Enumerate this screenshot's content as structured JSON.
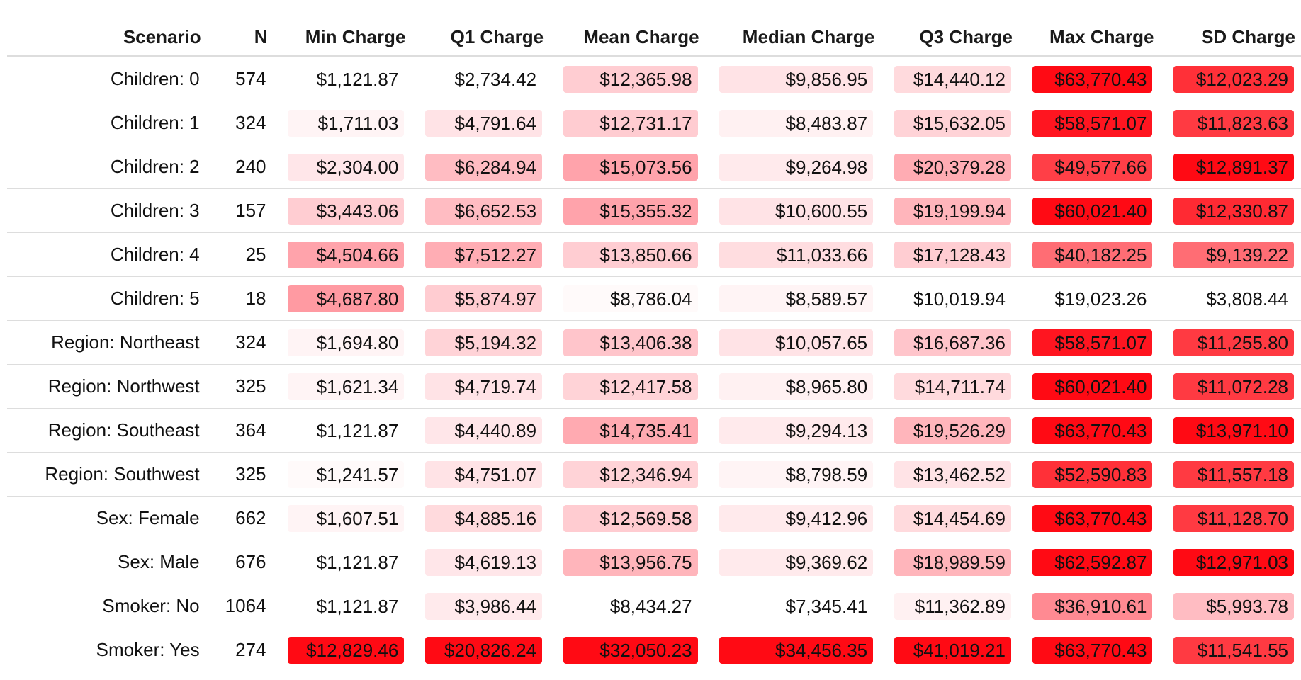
{
  "chart_data": {
    "type": "table",
    "columns": [
      "Scenario",
      "N",
      "Min Charge",
      "Q1 Charge",
      "Mean Charge",
      "Median Charge",
      "Q3 Charge",
      "Max Charge",
      "SD Charge"
    ],
    "rows": [
      {
        "scenario": "Children: 0",
        "n": "574",
        "cells": [
          {
            "text": "$1,121.87",
            "color": "#ffffff"
          },
          {
            "text": "$2,734.42",
            "color": "#ffffff"
          },
          {
            "text": "$12,365.98",
            "color": "#ffcdd2"
          },
          {
            "text": "$9,856.95",
            "color": "#ffe3e6"
          },
          {
            "text": "$14,440.12",
            "color": "#ffdadd"
          },
          {
            "text": "$63,770.43",
            "color": "#ff0a14"
          },
          {
            "text": "$12,023.29",
            "color": "#ff3038"
          }
        ]
      },
      {
        "scenario": "Children: 1",
        "n": "324",
        "cells": [
          {
            "text": "$1,711.03",
            "color": "#fff4f5"
          },
          {
            "text": "$4,791.64",
            "color": "#ffe3e6"
          },
          {
            "text": "$12,731.17",
            "color": "#ffccd1"
          },
          {
            "text": "$8,483.87",
            "color": "#fff1f2"
          },
          {
            "text": "$15,632.05",
            "color": "#ffd3d7"
          },
          {
            "text": "$58,571.07",
            "color": "#ff1520"
          },
          {
            "text": "$11,823.63",
            "color": "#ff3a42"
          }
        ]
      },
      {
        "scenario": "Children: 2",
        "n": "240",
        "cells": [
          {
            "text": "$2,304.00",
            "color": "#ffe6e9"
          },
          {
            "text": "$6,284.94",
            "color": "#ffbcc2"
          },
          {
            "text": "$15,073.56",
            "color": "#ffa3ab"
          },
          {
            "text": "$9,264.98",
            "color": "#ffeaec"
          },
          {
            "text": "$20,379.28",
            "color": "#ffacb3"
          },
          {
            "text": "$49,577.66",
            "color": "#ff3f47"
          },
          {
            "text": "$12,891.37",
            "color": "#ff0a14"
          }
        ]
      },
      {
        "scenario": "Children: 3",
        "n": "157",
        "cells": [
          {
            "text": "$3,443.06",
            "color": "#ffcdd2"
          },
          {
            "text": "$6,652.53",
            "color": "#ffbcc2"
          },
          {
            "text": "$15,355.32",
            "color": "#ffa3ab"
          },
          {
            "text": "$10,600.55",
            "color": "#ffe3e6"
          },
          {
            "text": "$19,199.94",
            "color": "#ffb5bb"
          },
          {
            "text": "$60,021.40",
            "color": "#ff0a14"
          },
          {
            "text": "$12,330.87",
            "color": "#ff2a33"
          }
        ]
      },
      {
        "scenario": "Children: 4",
        "n": "25",
        "cells": [
          {
            "text": "$4,504.66",
            "color": "#ffa3ab"
          },
          {
            "text": "$7,512.27",
            "color": "#ffadb4"
          },
          {
            "text": "$13,850.66",
            "color": "#ffcdd2"
          },
          {
            "text": "$11,033.66",
            "color": "#ffdde0"
          },
          {
            "text": "$17,128.43",
            "color": "#ffcdd2"
          },
          {
            "text": "$40,182.25",
            "color": "#ff6d74"
          },
          {
            "text": "$9,139.22",
            "color": "#ff6d74"
          }
        ]
      },
      {
        "scenario": "Children: 5",
        "n": "18",
        "cells": [
          {
            "text": "$4,687.80",
            "color": "#ff9aa2"
          },
          {
            "text": "$5,874.97",
            "color": "#ffccd1"
          },
          {
            "text": "$8,786.04",
            "color": "#fffafa"
          },
          {
            "text": "$8,589.57",
            "color": "#fff4f5"
          },
          {
            "text": "$10,019.94",
            "color": "#ffffff"
          },
          {
            "text": "$19,023.26",
            "color": "#ffffff"
          },
          {
            "text": "$3,808.44",
            "color": "#ffffff"
          }
        ]
      },
      {
        "scenario": "Region: Northeast",
        "n": "324",
        "cells": [
          {
            "text": "$1,694.80",
            "color": "#fff4f5"
          },
          {
            "text": "$5,194.32",
            "color": "#ffd3d7"
          },
          {
            "text": "$13,406.38",
            "color": "#ffc5cb"
          },
          {
            "text": "$10,057.65",
            "color": "#ffe3e6"
          },
          {
            "text": "$16,687.36",
            "color": "#ffc5cb"
          },
          {
            "text": "$58,571.07",
            "color": "#ff1520"
          },
          {
            "text": "$11,255.80",
            "color": "#ff3a42"
          }
        ]
      },
      {
        "scenario": "Region: Northwest",
        "n": "325",
        "cells": [
          {
            "text": "$1,621.34",
            "color": "#fff4f5"
          },
          {
            "text": "$4,719.74",
            "color": "#ffe3e6"
          },
          {
            "text": "$12,417.58",
            "color": "#ffd3d7"
          },
          {
            "text": "$8,965.80",
            "color": "#fff1f2"
          },
          {
            "text": "$14,711.74",
            "color": "#ffdadd"
          },
          {
            "text": "$60,021.40",
            "color": "#ff0a14"
          },
          {
            "text": "$11,072.28",
            "color": "#ff3a42"
          }
        ]
      },
      {
        "scenario": "Region: Southeast",
        "n": "364",
        "cells": [
          {
            "text": "$1,121.87",
            "color": "#ffffff"
          },
          {
            "text": "$4,440.89",
            "color": "#ffe6e9"
          },
          {
            "text": "$14,735.41",
            "color": "#ffaab1"
          },
          {
            "text": "$9,294.13",
            "color": "#ffeaec"
          },
          {
            "text": "$19,526.29",
            "color": "#ffb5bb"
          },
          {
            "text": "$63,770.43",
            "color": "#ff0a14"
          },
          {
            "text": "$13,971.10",
            "color": "#ff0a14"
          }
        ]
      },
      {
        "scenario": "Region: Southwest",
        "n": "325",
        "cells": [
          {
            "text": "$1,241.57",
            "color": "#fffafa"
          },
          {
            "text": "$4,751.07",
            "color": "#ffe3e6"
          },
          {
            "text": "$12,346.94",
            "color": "#ffd3d7"
          },
          {
            "text": "$8,798.59",
            "color": "#fff4f5"
          },
          {
            "text": "$13,462.52",
            "color": "#ffe3e6"
          },
          {
            "text": "$52,590.83",
            "color": "#ff3038"
          },
          {
            "text": "$11,557.18",
            "color": "#ff3a42"
          }
        ]
      },
      {
        "scenario": "Sex: Female",
        "n": "662",
        "cells": [
          {
            "text": "$1,607.51",
            "color": "#fff4f5"
          },
          {
            "text": "$4,885.16",
            "color": "#ffdadd"
          },
          {
            "text": "$12,569.58",
            "color": "#ffccd1"
          },
          {
            "text": "$9,412.96",
            "color": "#ffeaec"
          },
          {
            "text": "$14,454.69",
            "color": "#ffdadd"
          },
          {
            "text": "$63,770.43",
            "color": "#ff0a14"
          },
          {
            "text": "$11,128.70",
            "color": "#ff3a42"
          }
        ]
      },
      {
        "scenario": "Sex: Male",
        "n": "676",
        "cells": [
          {
            "text": "$1,121.87",
            "color": "#ffffff"
          },
          {
            "text": "$4,619.13",
            "color": "#ffe6e9"
          },
          {
            "text": "$13,956.75",
            "color": "#ffb5bb"
          },
          {
            "text": "$9,369.62",
            "color": "#ffeaec"
          },
          {
            "text": "$18,989.59",
            "color": "#ffb5bb"
          },
          {
            "text": "$62,592.87",
            "color": "#ff0a14"
          },
          {
            "text": "$12,971.03",
            "color": "#ff0a14"
          }
        ]
      },
      {
        "scenario": "Smoker: No",
        "n": "1064",
        "cells": [
          {
            "text": "$1,121.87",
            "color": "#ffffff"
          },
          {
            "text": "$3,986.44",
            "color": "#ffeaec"
          },
          {
            "text": "$8,434.27",
            "color": "#ffffff"
          },
          {
            "text": "$7,345.41",
            "color": "#ffffff"
          },
          {
            "text": "$11,362.89",
            "color": "#fff1f2"
          },
          {
            "text": "$36,910.61",
            "color": "#ff8a92"
          },
          {
            "text": "$5,993.78",
            "color": "#ffbcc2"
          }
        ]
      },
      {
        "scenario": "Smoker: Yes",
        "n": "274",
        "cells": [
          {
            "text": "$12,829.46",
            "color": "#ff0a14"
          },
          {
            "text": "$20,826.24",
            "color": "#ff0a14"
          },
          {
            "text": "$32,050.23",
            "color": "#ff0a14"
          },
          {
            "text": "$34,456.35",
            "color": "#ff0a14"
          },
          {
            "text": "$41,019.21",
            "color": "#ff0a14"
          },
          {
            "text": "$63,770.43",
            "color": "#ff0a14"
          },
          {
            "text": "$11,541.55",
            "color": "#ff3a42"
          }
        ]
      }
    ]
  }
}
